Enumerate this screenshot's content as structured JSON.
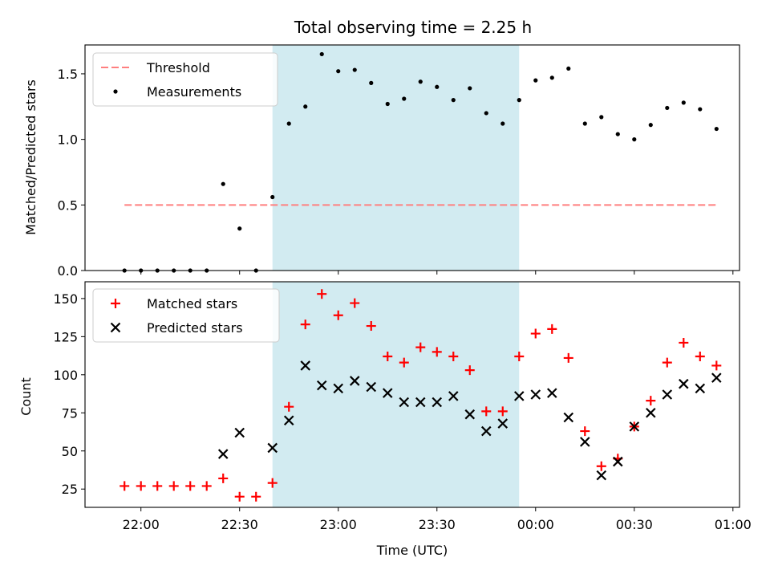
{
  "title": "Total observing time = 2.25 h",
  "colors": {
    "shade": "#a6d7e4",
    "threshold": "#ff7f7f",
    "measurements": "#000000",
    "matched": "#ff0000",
    "predicted": "#000000"
  },
  "chart_data": [
    {
      "type": "scatter",
      "ylabel": "Matched/Predicted stars",
      "ylim": [
        0,
        1.72
      ],
      "yticks": [
        0.0,
        0.5,
        1.0,
        1.5
      ],
      "ytick_labels": [
        "0.0",
        "0.5",
        "1.0",
        "1.5"
      ],
      "legend": "top-left",
      "shaded_span": [
        "22:40",
        "23:55"
      ],
      "threshold": {
        "name": "Threshold",
        "y": 0.5,
        "x_range": [
          "21:55",
          "00:55"
        ]
      },
      "series": [
        {
          "name": "Measurements",
          "marker": "dot",
          "x": [
            "21:55",
            "22:00",
            "22:05",
            "22:10",
            "22:15",
            "22:20",
            "22:25",
            "22:30",
            "22:35",
            "22:40",
            "22:45",
            "22:50",
            "22:55",
            "23:00",
            "23:05",
            "23:10",
            "23:15",
            "23:20",
            "23:25",
            "23:30",
            "23:35",
            "23:40",
            "23:45",
            "23:50",
            "23:55",
            "00:00",
            "00:05",
            "00:10",
            "00:15",
            "00:20",
            "00:25",
            "00:30",
            "00:35",
            "00:40",
            "00:45",
            "00:50",
            "00:55"
          ],
          "values": [
            0.0,
            0.0,
            0.0,
            0.0,
            0.0,
            0.0,
            0.66,
            0.32,
            0.0,
            0.56,
            1.12,
            1.25,
            1.65,
            1.52,
            1.53,
            1.43,
            1.27,
            1.31,
            1.44,
            1.4,
            1.3,
            1.39,
            1.2,
            1.12,
            1.3,
            1.45,
            1.47,
            1.54,
            1.12,
            1.17,
            1.04,
            1.0,
            1.11,
            1.24,
            1.28,
            1.23,
            1.08
          ]
        }
      ]
    },
    {
      "type": "scatter",
      "xlabel": "Time (UTC)",
      "ylabel": "Count",
      "ylim": [
        13,
        161
      ],
      "yticks": [
        25,
        50,
        75,
        100,
        125,
        150
      ],
      "ytick_labels": [
        "25",
        "50",
        "75",
        "100",
        "125",
        "150"
      ],
      "xticks": [
        "22:00",
        "22:30",
        "23:00",
        "23:30",
        "00:00",
        "00:30",
        "01:00"
      ],
      "xlim": [
        "21:43",
        "01:02"
      ],
      "legend": "top-left",
      "shaded_span": [
        "22:40",
        "23:55"
      ],
      "series": [
        {
          "name": "Matched stars",
          "marker": "plus",
          "x": [
            "21:55",
            "22:00",
            "22:05",
            "22:10",
            "22:15",
            "22:20",
            "22:25",
            "22:30",
            "22:35",
            "22:40",
            "22:45",
            "22:50",
            "22:55",
            "23:00",
            "23:05",
            "23:10",
            "23:15",
            "23:20",
            "23:25",
            "23:30",
            "23:35",
            "23:40",
            "23:45",
            "23:50",
            "23:55",
            "00:00",
            "00:05",
            "00:10",
            "00:15",
            "00:20",
            "00:25",
            "00:30",
            "00:35",
            "00:40",
            "00:45",
            "00:50",
            "00:55"
          ],
          "values": [
            27,
            27,
            27,
            27,
            27,
            27,
            32,
            20,
            20,
            29,
            79,
            133,
            153,
            139,
            147,
            132,
            112,
            108,
            118,
            115,
            112,
            103,
            76,
            76,
            112,
            127,
            130,
            111,
            63,
            40,
            45,
            66,
            83,
            108,
            121,
            112,
            106
          ]
        },
        {
          "name": "Predicted stars",
          "marker": "x",
          "x": [
            "22:25",
            "22:30",
            "22:40",
            "22:45",
            "22:50",
            "22:55",
            "23:00",
            "23:05",
            "23:10",
            "23:15",
            "23:20",
            "23:25",
            "23:30",
            "23:35",
            "23:40",
            "23:45",
            "23:50",
            "23:55",
            "00:00",
            "00:05",
            "00:10",
            "00:15",
            "00:20",
            "00:25",
            "00:30",
            "00:35",
            "00:40",
            "00:45",
            "00:50",
            "00:55"
          ],
          "values": [
            48,
            62,
            52,
            70,
            106,
            93,
            91,
            96,
            92,
            88,
            82,
            82,
            82,
            86,
            74,
            63,
            68,
            86,
            87,
            88,
            72,
            56,
            34,
            43,
            66,
            75,
            87,
            94,
            91,
            98
          ]
        }
      ]
    }
  ]
}
